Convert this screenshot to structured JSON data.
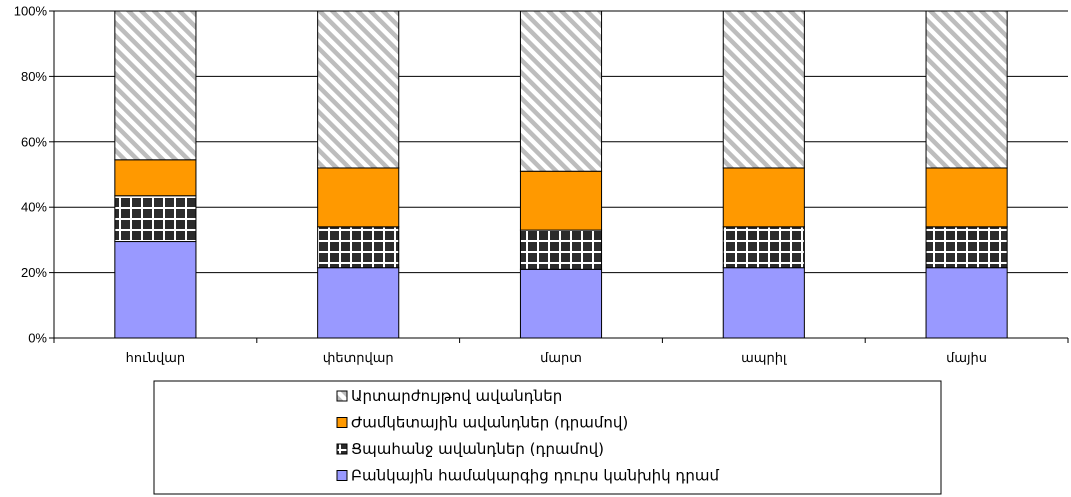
{
  "chart_data": {
    "type": "bar",
    "stacked": true,
    "percent": true,
    "categories": [
      "հունվար",
      "փետրվար",
      "մարտ",
      "ապրիլ",
      "մայիս"
    ],
    "series": [
      {
        "name": "Բանկային համակարգից դուրս կանխիկ դրամ",
        "values": [
          29.5,
          21.5,
          21.0,
          21.5,
          21.5
        ],
        "color": "#9999ff",
        "pattern": "solid"
      },
      {
        "name": "Ցպահանջ ավանդներ (դրամով)",
        "values": [
          14.0,
          12.5,
          12.0,
          12.5,
          12.5
        ],
        "color": "#333333",
        "pattern": "grid"
      },
      {
        "name": "Ժամկետային ավանդներ (դրամով)",
        "values": [
          11.0,
          18.0,
          18.0,
          18.0,
          18.0
        ],
        "color": "#ff9900",
        "pattern": "solid"
      },
      {
        "name": "Արտարժույթով ավանդներ",
        "values": [
          45.5,
          48.0,
          49.0,
          48.0,
          48.0
        ],
        "color": "#c0c0c0",
        "pattern": "diagonal"
      }
    ],
    "y_ticks": [
      "0%",
      "20%",
      "40%",
      "60%",
      "80%",
      "100%"
    ],
    "ylim": [
      0,
      100
    ],
    "grid": true,
    "legend_position": "bottom",
    "legend_order": [
      3,
      2,
      1,
      0
    ]
  }
}
